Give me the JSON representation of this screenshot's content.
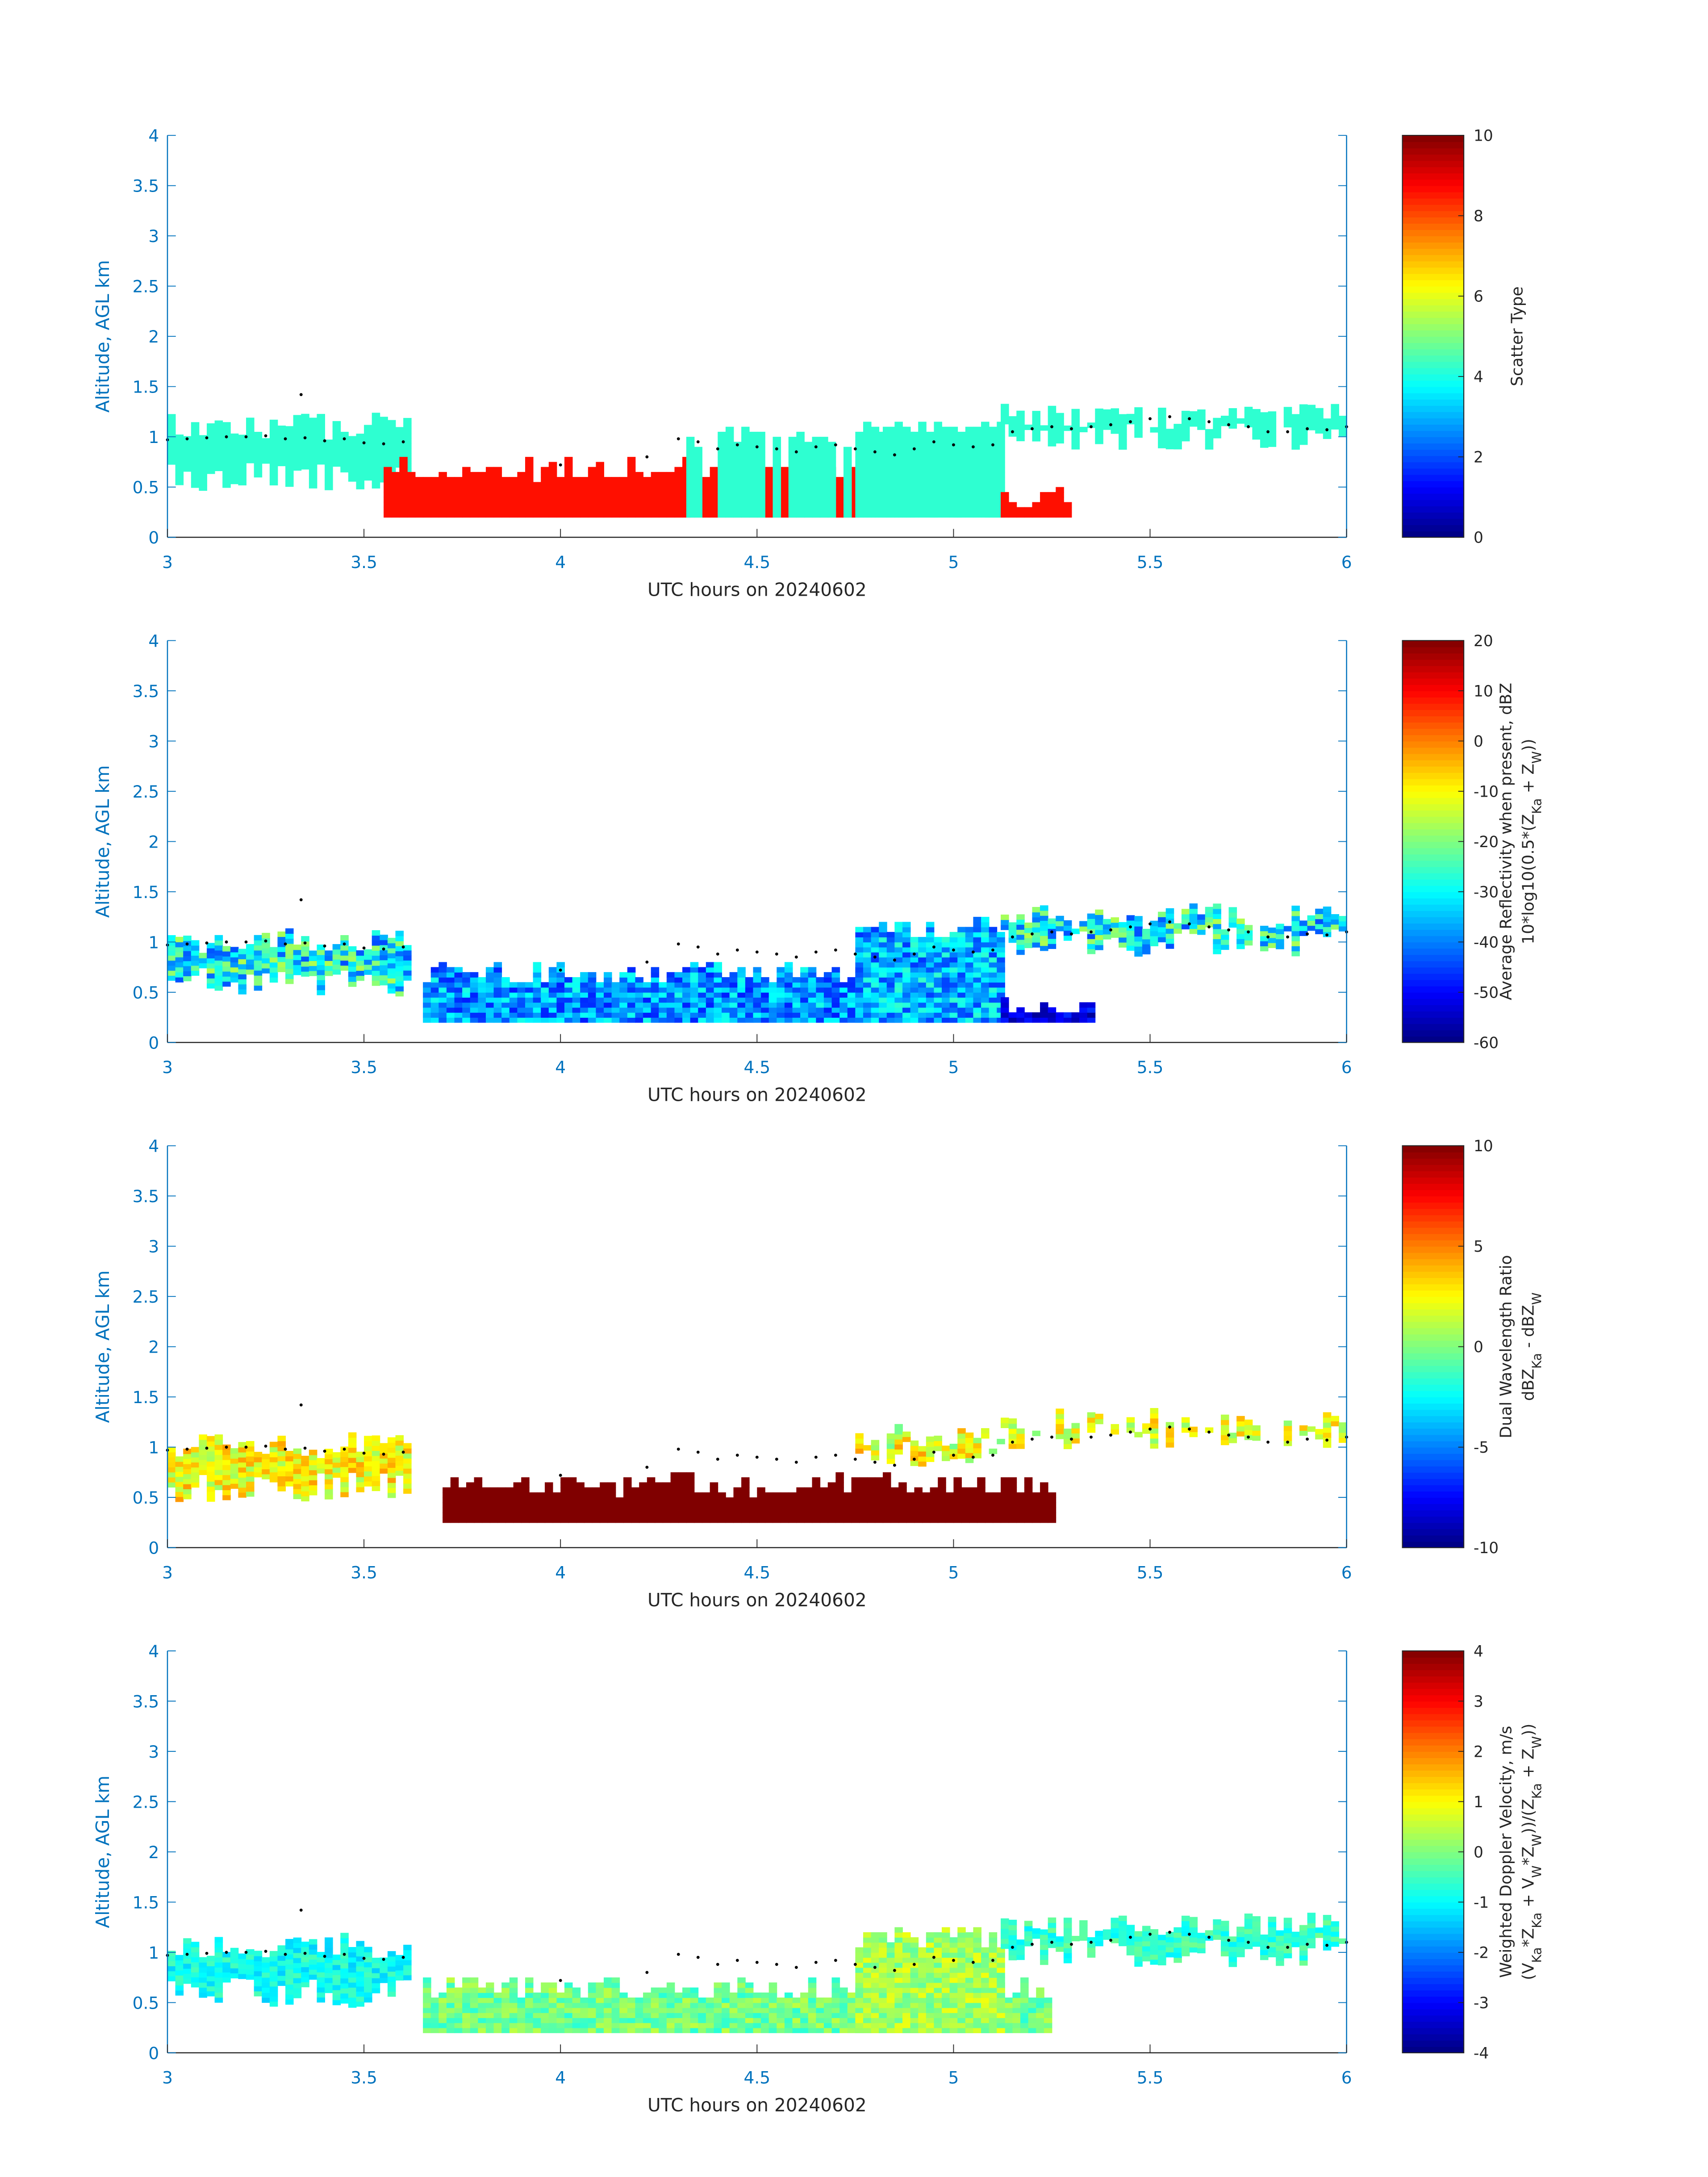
{
  "chart_data": [
    {
      "type": "heatmap",
      "xlabel": "UTC hours on 20240602",
      "ylabel": "Altitude, AGL km",
      "xlim": [
        3,
        6
      ],
      "ylim": [
        0,
        4
      ],
      "xticks": [
        "3",
        "3.5",
        "4",
        "4.5",
        "5",
        "5.5",
        "6"
      ],
      "yticks": [
        "0",
        "0.5",
        "1",
        "1.5",
        "2",
        "2.5",
        "3",
        "3.5",
        "4"
      ],
      "clim": [
        0,
        10
      ],
      "cticks": [
        "0",
        "2",
        "4",
        "6",
        "8",
        "10"
      ],
      "colorbar_label": [
        [
          {
            "t": "Scatter Type"
          }
        ]
      ],
      "colormap": "jet",
      "regions": [
        {
          "t": [
            3.0,
            3.62
          ],
          "base": 0.45,
          "top": 1.22,
          "value": 4.2,
          "noise": 0
        },
        {
          "t": [
            3.55,
            4.32
          ],
          "base": 0.2,
          "top": 0.78,
          "value": 8.6,
          "noise": 0
        },
        {
          "t": [
            4.32,
            4.75
          ],
          "base": 0.2,
          "top": 0.7,
          "value": 8.6,
          "noise": 0
        },
        {
          "t": [
            4.32,
            5.12
          ],
          "base": 0.2,
          "top": 1.1,
          "value": 4.2,
          "noise": 0,
          "sparse": 0.35
        },
        {
          "t": [
            4.75,
            5.12
          ],
          "base": 0.2,
          "top": 1.25,
          "value": 4.2,
          "noise": 0
        },
        {
          "t": [
            5.12,
            5.3
          ],
          "base": 0.2,
          "top": 0.5,
          "value": 8.6,
          "noise": 0
        },
        {
          "t": [
            5.12,
            6.0
          ],
          "base": 0.85,
          "top": 1.3,
          "value": 4.2,
          "noise": 0
        }
      ]
    },
    {
      "type": "heatmap",
      "xlabel": "UTC hours on 20240602",
      "ylabel": "Altitude, AGL km",
      "xlim": [
        3,
        6
      ],
      "ylim": [
        0,
        4
      ],
      "xticks": [
        "3",
        "3.5",
        "4",
        "4.5",
        "5",
        "5.5",
        "6"
      ],
      "yticks": [
        "0",
        "0.5",
        "1",
        "1.5",
        "2",
        "2.5",
        "3",
        "3.5",
        "4"
      ],
      "clim": [
        -60,
        20
      ],
      "cticks": [
        "-60",
        "-50",
        "-40",
        "-30",
        "-20",
        "-10",
        "0",
        "10",
        "20"
      ],
      "colorbar_label": [
        [
          {
            "t": "Average Reflectivity when present, dBZ"
          }
        ],
        [
          {
            "t": "10*log10(0.5*(Z"
          },
          {
            "t": "Ka",
            "sub": true
          },
          {
            "t": " + Z"
          },
          {
            "t": "W",
            "sub": true
          },
          {
            "t": "))"
          }
        ]
      ],
      "colormap": "jet",
      "regions": [
        {
          "t": [
            3.0,
            3.62
          ],
          "base": 0.45,
          "top": 1.12,
          "value": -30,
          "noise": 14
        },
        {
          "t": [
            3.65,
            5.12
          ],
          "base": 0.2,
          "top": 0.8,
          "value": -38,
          "noise": 10
        },
        {
          "t": [
            4.75,
            5.12
          ],
          "base": 0.2,
          "top": 1.25,
          "value": -36,
          "noise": 10
        },
        {
          "t": [
            5.12,
            5.35
          ],
          "base": 0.2,
          "top": 0.45,
          "value": -52,
          "noise": 6
        },
        {
          "t": [
            5.12,
            6.0
          ],
          "base": 0.85,
          "top": 1.35,
          "value": -30,
          "noise": 14
        }
      ]
    },
    {
      "type": "heatmap",
      "xlabel": "UTC hours on 20240602",
      "ylabel": "Altitude, AGL km",
      "xlim": [
        3,
        6
      ],
      "ylim": [
        0,
        4
      ],
      "xticks": [
        "3",
        "3.5",
        "4",
        "4.5",
        "5",
        "5.5",
        "6"
      ],
      "yticks": [
        "0",
        "0.5",
        "1",
        "1.5",
        "2",
        "2.5",
        "3",
        "3.5",
        "4"
      ],
      "clim": [
        -10,
        10
      ],
      "cticks": [
        "-10",
        "-5",
        "0",
        "5",
        "10"
      ],
      "colorbar_label": [
        [
          {
            "t": "Dual Wavelength Ratio"
          }
        ],
        [
          {
            "t": "dBZ"
          },
          {
            "t": "Ka",
            "sub": true
          },
          {
            "t": " - dBZ"
          },
          {
            "t": "W",
            "sub": true
          }
        ]
      ],
      "colormap": "jet",
      "regions": [
        {
          "t": [
            3.0,
            3.62
          ],
          "base": 0.45,
          "top": 1.12,
          "value": 2.5,
          "noise": 2
        },
        {
          "t": [
            3.7,
            5.25
          ],
          "base": 0.25,
          "top": 0.72,
          "value": 10,
          "noise": 0
        },
        {
          "t": [
            4.75,
            5.12
          ],
          "base": 0.8,
          "top": 1.2,
          "value": 2,
          "noise": 2.5
        },
        {
          "t": [
            5.12,
            6.0
          ],
          "base": 0.95,
          "top": 1.35,
          "value": 2,
          "noise": 2
        }
      ]
    },
    {
      "type": "heatmap",
      "xlabel": "UTC hours on 20240602",
      "ylabel": "Altitude, AGL km",
      "xlim": [
        3,
        6
      ],
      "ylim": [
        0,
        4
      ],
      "xticks": [
        "3",
        "3.5",
        "4",
        "4.5",
        "5",
        "5.5",
        "6"
      ],
      "yticks": [
        "0",
        "0.5",
        "1",
        "1.5",
        "2",
        "2.5",
        "3",
        "3.5",
        "4"
      ],
      "clim": [
        -4,
        4
      ],
      "cticks": [
        "-4",
        "-3",
        "-2",
        "-1",
        "0",
        "1",
        "2",
        "3",
        "4"
      ],
      "colorbar_label": [
        [
          {
            "t": "Weighted Doppler Velocity, m/s"
          }
        ],
        [
          {
            "t": "(V"
          },
          {
            "t": "Ka",
            "sub": true
          },
          {
            "t": "*Z"
          },
          {
            "t": "Ka",
            "sub": true
          },
          {
            "t": " + V"
          },
          {
            "t": "W",
            "sub": true
          },
          {
            "t": "*Z"
          },
          {
            "t": "W",
            "sub": true
          },
          {
            "t": "))/(Z"
          },
          {
            "t": "Ka",
            "sub": true
          },
          {
            "t": " + Z"
          },
          {
            "t": "W",
            "sub": true
          },
          {
            "t": "))"
          }
        ]
      ],
      "colormap": "jet",
      "regions": [
        {
          "t": [
            3.0,
            3.62
          ],
          "base": 0.45,
          "top": 1.15,
          "value": -0.9,
          "noise": 0.5
        },
        {
          "t": [
            3.65,
            5.25
          ],
          "base": 0.2,
          "top": 0.75,
          "value": -0.1,
          "noise": 0.6
        },
        {
          "t": [
            4.75,
            5.12
          ],
          "base": 0.2,
          "top": 1.25,
          "value": 0.3,
          "noise": 0.6
        },
        {
          "t": [
            5.12,
            6.0
          ],
          "base": 0.85,
          "top": 1.35,
          "value": -0.6,
          "noise": 0.5
        }
      ]
    }
  ],
  "cloud_base_dots": [
    [
      3.0,
      0.97
    ],
    [
      3.05,
      0.98
    ],
    [
      3.1,
      0.99
    ],
    [
      3.15,
      1.0
    ],
    [
      3.2,
      1.0
    ],
    [
      3.25,
      1.01
    ],
    [
      3.3,
      0.98
    ],
    [
      3.34,
      1.42
    ],
    [
      3.35,
      0.99
    ],
    [
      3.4,
      0.96
    ],
    [
      3.45,
      0.98
    ],
    [
      3.5,
      0.94
    ],
    [
      3.55,
      0.93
    ],
    [
      3.6,
      0.95
    ],
    [
      4.0,
      0.72
    ],
    [
      4.22,
      0.8
    ],
    [
      4.3,
      0.98
    ],
    [
      4.35,
      0.95
    ],
    [
      4.4,
      0.88
    ],
    [
      4.45,
      0.92
    ],
    [
      4.5,
      0.9
    ],
    [
      4.55,
      0.88
    ],
    [
      4.6,
      0.85
    ],
    [
      4.65,
      0.9
    ],
    [
      4.7,
      0.92
    ],
    [
      4.75,
      0.88
    ],
    [
      4.8,
      0.85
    ],
    [
      4.85,
      0.82
    ],
    [
      4.9,
      0.88
    ],
    [
      4.95,
      0.95
    ],
    [
      5.0,
      0.92
    ],
    [
      5.05,
      0.9
    ],
    [
      5.1,
      0.92
    ],
    [
      5.15,
      1.05
    ],
    [
      5.2,
      1.08
    ],
    [
      5.25,
      1.1
    ],
    [
      5.3,
      1.08
    ],
    [
      5.35,
      1.1
    ],
    [
      5.4,
      1.12
    ],
    [
      5.45,
      1.15
    ],
    [
      5.5,
      1.18
    ],
    [
      5.55,
      1.2
    ],
    [
      5.6,
      1.18
    ],
    [
      5.65,
      1.15
    ],
    [
      5.7,
      1.12
    ],
    [
      5.75,
      1.1
    ],
    [
      5.8,
      1.05
    ],
    [
      5.85,
      1.05
    ],
    [
      5.9,
      1.08
    ],
    [
      5.95,
      1.07
    ],
    [
      6.0,
      1.1
    ]
  ]
}
